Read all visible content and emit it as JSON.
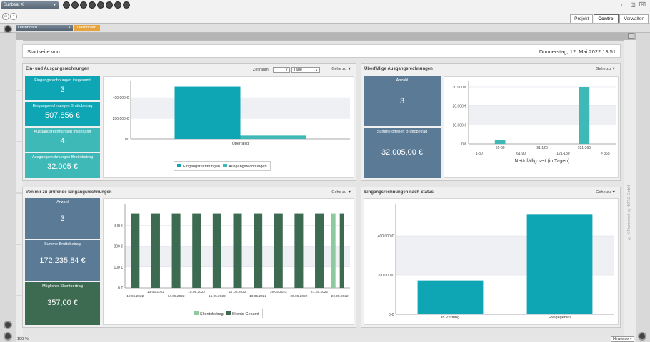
{
  "app": {
    "selector": "Sunbeat X",
    "window_controls": [
      "▭",
      "◫",
      "⌧"
    ]
  },
  "tabs": [
    {
      "label": "Projekt"
    },
    {
      "label": "Control",
      "active": true
    },
    {
      "label": "Verwalten"
    }
  ],
  "nav": {
    "dashboard_select": "Dashboard",
    "breadcrumb": "Dashboard"
  },
  "header": {
    "left": "Startseite von",
    "right": "Donnerstag, 12. Mai 2022 13:51"
  },
  "card1": {
    "title": "Ein- und Ausgangsrechnungen",
    "zeitraum_label": "Zeitraum",
    "zeitraum_value": "7",
    "zeitraum_unit": "Tage",
    "goto": "Gehe zu",
    "kpis": [
      {
        "label": "Eingangsrechnungen insgesamt",
        "value": "3"
      },
      {
        "label": "Eingangsrechnungen Bruttobetrag",
        "value": "507.856 €"
      },
      {
        "label": "Ausgangsrechnungen insgesamt",
        "value": "4"
      },
      {
        "label": "Ausgangsrechnungen Bruttobetrag",
        "value": "32.005 €"
      }
    ]
  },
  "card2": {
    "title": "Überfällige Ausgangsrechnungen",
    "goto": "Gehe zu",
    "kpis": [
      {
        "label": "Anzahl",
        "value": "3"
      },
      {
        "label": "Summe offenen Bruttobetrag",
        "value": "32.005,00 €"
      }
    ]
  },
  "card3": {
    "title": "Von mir zu prüfende Eingangsrechnungen",
    "goto": "Gehe zu",
    "kpis": [
      {
        "label": "Anzahl",
        "value": "3"
      },
      {
        "label": "Summe Bruttobetrag",
        "value": "172.235,84 €"
      },
      {
        "label": "Möglicher Skontoertrag",
        "value": "357,00 €"
      }
    ]
  },
  "card4": {
    "title": "Eingangsrechnungen nach Status",
    "goto": "Gehe zu"
  },
  "footer": {
    "zoom": "100 %",
    "hinweise": "Hinweise",
    "copyright": "© X-Framework by HORIZ GmbH"
  },
  "colors": {
    "teal": "#3fb8b8",
    "blue_teal": "#0ea5b5",
    "slate": "#5a7a95",
    "dark_green": "#3d6b52",
    "light_green": "#8fc9a0",
    "orange": "#e8a43c"
  },
  "chart_data": [
    {
      "type": "bar",
      "categories": [
        "Überfällig"
      ],
      "series": [
        {
          "name": "Eingangsrechnungen",
          "values": [
            507856
          ],
          "color": "#0ea5b5"
        },
        {
          "name": "Ausgangsrechnungen",
          "values": [
            32005
          ],
          "color": "#3fb8b8"
        }
      ],
      "y_ticks": [
        0,
        200000,
        400000
      ],
      "y_tick_labels": [
        "0 €",
        "200.000 €",
        "400.000 €"
      ],
      "ylim": [
        0,
        560000
      ]
    },
    {
      "type": "bar",
      "categories": [
        "1-30",
        "31-60",
        "61-90",
        "91-120",
        "121-180",
        "181-365",
        "> 365"
      ],
      "values": [
        0,
        2000,
        0,
        0,
        0,
        30005,
        0
      ],
      "xlabel": "Nettofällig seit (in Tagen)",
      "y_ticks": [
        0,
        10000,
        20000,
        30000
      ],
      "y_tick_labels": [
        "0 €",
        "10.000 €",
        "20.000 €",
        "30.000 €"
      ],
      "ylim": [
        0,
        33000
      ]
    },
    {
      "type": "bar",
      "categories": [
        "12.05.2022",
        "13.05.2022",
        "14.05.2022",
        "15.05.2022",
        "16.05.2022",
        "17.05.2022",
        "18.05.2022",
        "19.05.2022",
        "20.05.2022",
        "21.05.2022",
        "22.05.2022"
      ],
      "series": [
        {
          "name": "Skontobetrag",
          "values": [
            0,
            0,
            0,
            0,
            0,
            0,
            0,
            0,
            0,
            0,
            357
          ],
          "color": "#8fc9a0"
        },
        {
          "name": "Skonto Gesamt",
          "values": [
            357,
            357,
            357,
            357,
            357,
            357,
            357,
            357,
            357,
            357,
            357
          ],
          "color": "#3d6b52"
        }
      ],
      "y_ticks": [
        0,
        100,
        200,
        300
      ],
      "y_tick_labels": [
        "0 €",
        "100 €",
        "200 €",
        "300 €"
      ],
      "ylim": [
        0,
        400
      ]
    },
    {
      "type": "bar",
      "categories": [
        "In Prüfung",
        "Freigegeben"
      ],
      "values": [
        172236,
        507856
      ],
      "y_ticks": [
        0,
        200000,
        400000
      ],
      "y_tick_labels": [
        "0 €",
        "200.000 €",
        "400.000 €"
      ],
      "ylim": [
        0,
        560000
      ]
    }
  ]
}
